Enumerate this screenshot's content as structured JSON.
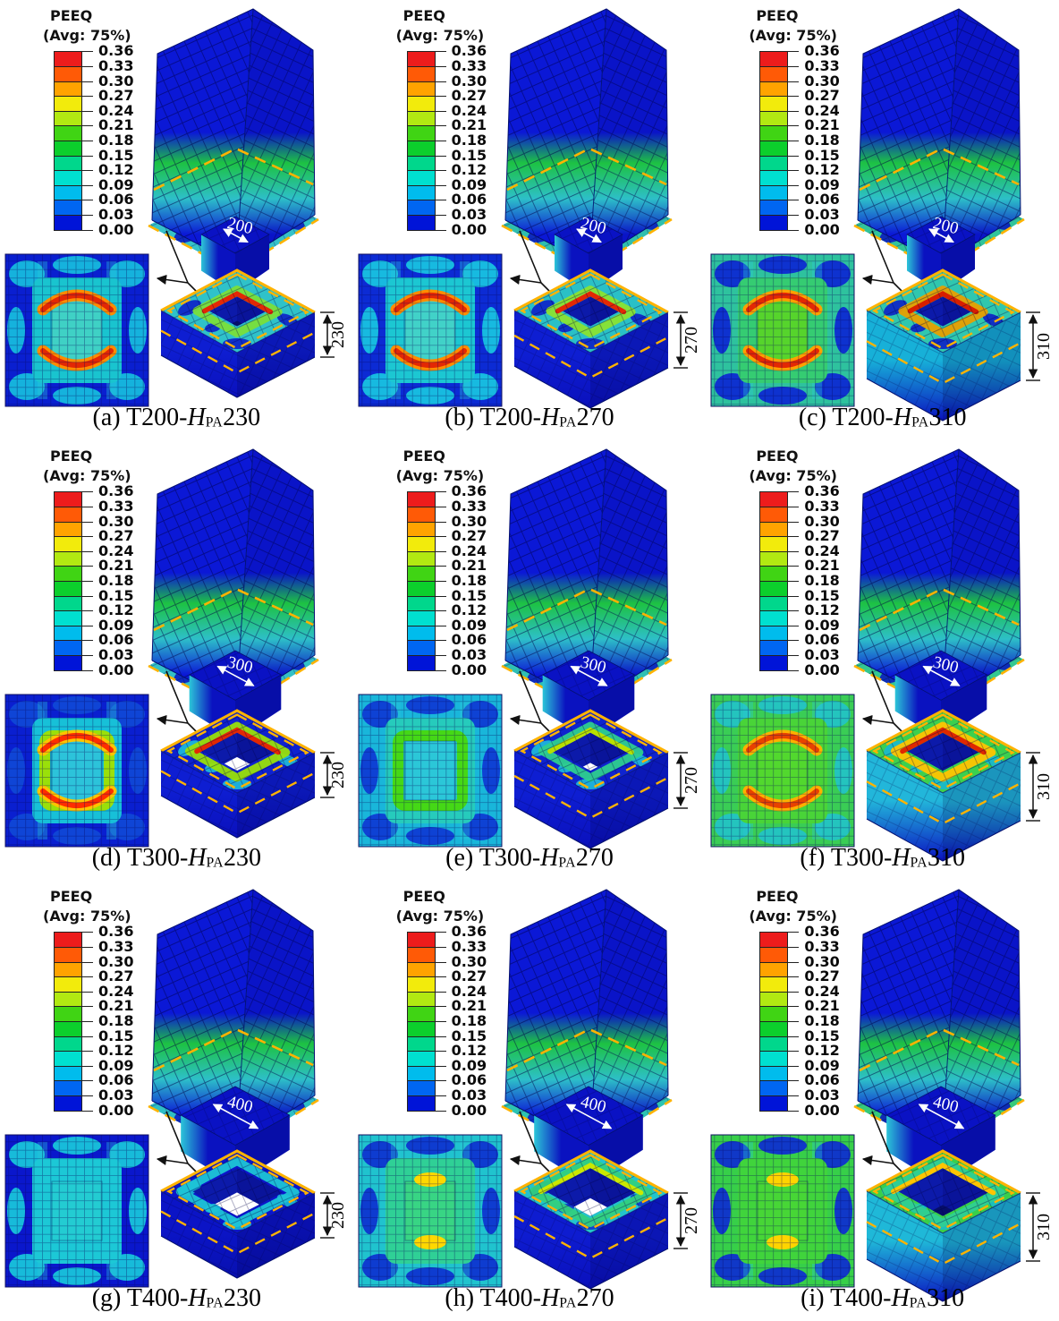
{
  "legend": {
    "title": "PEEQ",
    "subtitle": "(Avg: 75%)",
    "ticks": [
      "0.36",
      "0.33",
      "0.30",
      "0.27",
      "0.24",
      "0.21",
      "0.18",
      "0.15",
      "0.12",
      "0.09",
      "0.06",
      "0.03",
      "0.00"
    ],
    "band_colors_top_to_bottom": [
      "#ed1c1c",
      "#ff5a06",
      "#ffa300",
      "#f2eb0c",
      "#b2e912",
      "#40d414",
      "#0ccf2c",
      "#00d78c",
      "#00e0d0",
      "#00bced",
      "#0066f2",
      "#0014d8"
    ]
  },
  "dash_color": "#ffb300",
  "chart_data": {
    "type": "heatmap",
    "title": "PEEQ",
    "subtitle": "(Avg: 75%)",
    "scale_range": [
      0.0,
      0.36
    ],
    "scale_ticks": [
      0.36,
      0.33,
      0.3,
      0.27,
      0.24,
      0.21,
      0.18,
      0.15,
      0.12,
      0.09,
      0.06,
      0.03,
      0.0
    ],
    "panel_matrix": {
      "rows_T": [
        200,
        300,
        400
      ],
      "cols_HPA": [
        230,
        270,
        310
      ]
    },
    "panel_labels": [
      "T200-HPA230",
      "T200-HPA270",
      "T200-HPA310",
      "T300-HPA230",
      "T300-HPA270",
      "T300-HPA310",
      "T400-HPA230",
      "T400-HPA270",
      "T400-HPA310"
    ]
  },
  "panels": [
    {
      "id": "a",
      "caption": {
        "index": "(a)",
        "prefix": "T200-",
        "h": "H",
        "sub": "PA",
        "value": "230"
      },
      "base_dim": "200",
      "height_dim": "230",
      "geom": {
        "stub": 1.0,
        "hole": 0.36,
        "blockH": 50
      },
      "style": {
        "cut": "#35c2ca",
        "detail_bg": "#0a1fd0",
        "detail_blob": "#16badd",
        "detail_mid": "#19c4cf",
        "detail_center": "#3fd1c5",
        "ring_rect": "",
        "arc_outer": "#ff8c00",
        "arc_inner": "#e32804",
        "hot": "",
        "block_top": "#2fc2c9",
        "top_blob": "#0b16c8",
        "block_ring": "#7adf3a",
        "block_hot": "#e32804",
        "side_top": "#0e1ed2",
        "side_bot": "#0a10bc",
        "hole_floor": ""
      }
    },
    {
      "id": "b",
      "caption": {
        "index": "(b)",
        "prefix": "T200-",
        "h": "H",
        "sub": "PA",
        "value": "270"
      },
      "base_dim": "200",
      "height_dim": "270",
      "geom": {
        "stub": 1.0,
        "hole": 0.36,
        "blockH": 62
      },
      "style": {
        "cut": "#2fbfae",
        "detail_bg": "#0c2bd4",
        "detail_blob": "#18c2e0",
        "detail_mid": "#1cc7d2",
        "detail_center": "#41d2c8",
        "ring_rect": "",
        "arc_outer": "#ff8c00",
        "arc_inner": "#e32804",
        "hot": "",
        "block_top": "#2ac0c6",
        "top_blob": "#0b16c8",
        "block_ring": "#8ae332",
        "block_hot": "#e32804",
        "side_top": "#0e1ed2",
        "side_bot": "#0a10bc",
        "hole_floor": ""
      }
    },
    {
      "id": "c",
      "caption": {
        "index": "(c)",
        "prefix": "T200-",
        "h": "H",
        "sub": "PA",
        "value": "310"
      },
      "base_dim": "200",
      "height_dim": "310",
      "geom": {
        "stub": 1.0,
        "hole": 0.36,
        "blockH": 76
      },
      "style": {
        "cut": "#31c49a",
        "detail_bg": "#2ec29e",
        "detail_blob": "#0d2ad2",
        "detail_mid": "#35cc72",
        "detail_center": "#56d42c",
        "ring_rect": "",
        "arc_outer": "#ffa000",
        "arc_inner": "#e32804",
        "hot": "",
        "block_top": "#30c7ae",
        "top_blob": "#0b16c8",
        "block_ring": "#e8a000",
        "block_hot": "#d81e00",
        "side_top": "#17b0d8",
        "side_bot": "#0a12c0",
        "hole_floor": ""
      }
    },
    {
      "id": "d",
      "caption": {
        "index": "(d)",
        "prefix": "T300-",
        "h": "H",
        "sub": "PA",
        "value": "230"
      },
      "base_dim": "300",
      "height_dim": "230",
      "geom": {
        "stub": 1.35,
        "hole": 0.46,
        "blockH": 50
      },
      "style": {
        "cut": "#33c1c8",
        "detail_bg": "#0a1fd0",
        "detail_blob": "#1048d6",
        "detail_mid": "#17c0d8",
        "detail_center": "#2cc3da",
        "ring_rect": "#9ae00a",
        "arc_outer": "#ffc400",
        "arc_inner": "#ff2e00",
        "hot": "",
        "block_top": "#0e22cf",
        "top_blob": "#1fc7dc",
        "block_ring": "#9ae00a",
        "block_hot": "#e32804",
        "side_top": "#0e1ed2",
        "side_bot": "#0a10bc",
        "hole_floor": "#ffffff"
      }
    },
    {
      "id": "e",
      "caption": {
        "index": "(e)",
        "prefix": "T300-",
        "h": "H",
        "sub": "PA",
        "value": "270"
      },
      "base_dim": "300",
      "height_dim": "270",
      "geom": {
        "stub": 1.35,
        "hole": 0.46,
        "blockH": 62
      },
      "style": {
        "cut": "#2fc0b4",
        "detail_bg": "#19b6da",
        "detail_blob": "#0e3cd4",
        "detail_mid": "#26cbbc",
        "detail_center": "#2bc7d8",
        "ring_rect": "#45d816",
        "arc_outer": "",
        "arc_inner": "",
        "hot": "",
        "block_top": "#0f24cf",
        "top_blob": "#1fc7dc",
        "block_ring": "#2ecf8e",
        "block_hot": "#b8e000",
        "side_top": "#0e1ed2",
        "side_bot": "#0a10bc",
        "hole_floor": "#ffffff"
      }
    },
    {
      "id": "f",
      "caption": {
        "index": "(f)",
        "prefix": "T300-",
        "h": "H",
        "sub": "PA",
        "value": "310"
      },
      "base_dim": "300",
      "height_dim": "310",
      "geom": {
        "stub": 1.35,
        "hole": 0.46,
        "blockH": 76
      },
      "style": {
        "cut": "#33c891",
        "detail_bg": "#3acd55",
        "detail_blob": "#23c3c4",
        "detail_mid": "#49d438",
        "detail_center": "#52d82e",
        "ring_rect": "",
        "arc_outer": "#ffb000",
        "arc_inner": "#e84200",
        "hot": "",
        "block_top": "#3cd04e",
        "top_blob": "#18b6d8",
        "block_ring": "#ffc400",
        "block_hot": "#df2800",
        "side_top": "#22b6da",
        "side_bot": "#0a12c2",
        "hole_floor": ""
      }
    },
    {
      "id": "g",
      "caption": {
        "index": "(g)",
        "prefix": "T400-",
        "h": "H",
        "sub": "PA",
        "value": "230"
      },
      "base_dim": "400",
      "height_dim": "230",
      "geom": {
        "stub": 1.6,
        "hole": 0.58,
        "blockH": 50
      },
      "style": {
        "cut": "#2ebfc6",
        "detail_bg": "#0a17cc",
        "detail_blob": "#18c4da",
        "detail_mid": "#1cc8d6",
        "detail_center": "#23ccd2",
        "ring_rect": "",
        "arc_outer": "",
        "arc_inner": "",
        "hot": "",
        "block_top": "#0b16c9",
        "top_blob": "#1ac4d8",
        "block_ring": "#1ec4d6",
        "block_hot": "",
        "side_top": "#0b14c6",
        "side_bot": "#0810b0",
        "hole_floor": "#ffffff"
      }
    },
    {
      "id": "h",
      "caption": {
        "index": "(h)",
        "prefix": "T400-",
        "h": "H",
        "sub": "PA",
        "value": "270"
      },
      "base_dim": "400",
      "height_dim": "270",
      "geom": {
        "stub": 1.6,
        "hole": 0.58,
        "blockH": 62
      },
      "style": {
        "cut": "#2cc4b2",
        "detail_bg": "#20c3ce",
        "detail_blob": "#0e35d0",
        "detail_mid": "#2fd096",
        "detail_center": "#38d584",
        "ring_rect": "",
        "arc_outer": "",
        "arc_inner": "",
        "hot": "#ffd800",
        "block_top": "#23c4cc",
        "top_blob": "#0e2ccc",
        "block_ring": "#33d07e",
        "block_hot": "#cbe800",
        "side_top": "#0e1cd0",
        "side_bot": "#0a10bc",
        "hole_floor": "#ffffff"
      }
    },
    {
      "id": "i",
      "caption": {
        "index": "(i)",
        "prefix": "T400-",
        "h": "H",
        "sub": "PA",
        "value": "310"
      },
      "base_dim": "400",
      "height_dim": "310",
      "geom": {
        "stub": 1.6,
        "hole": 0.58,
        "blockH": 76
      },
      "style": {
        "cut": "#35ca7a",
        "detail_bg": "#37cf49",
        "detail_blob": "#0e2fd0",
        "detail_mid": "#40d43c",
        "detail_center": "#47d636",
        "ring_rect": "",
        "arc_outer": "",
        "arc_inner": "",
        "hot": "#ffd400",
        "block_top": "#39cf4a",
        "top_blob": "#18bcd0",
        "block_ring": "#2fcf92",
        "block_hot": "#ffc400",
        "side_top": "#1fb8d8",
        "side_bot": "#0a12c2",
        "hole_floor": ""
      }
    }
  ]
}
